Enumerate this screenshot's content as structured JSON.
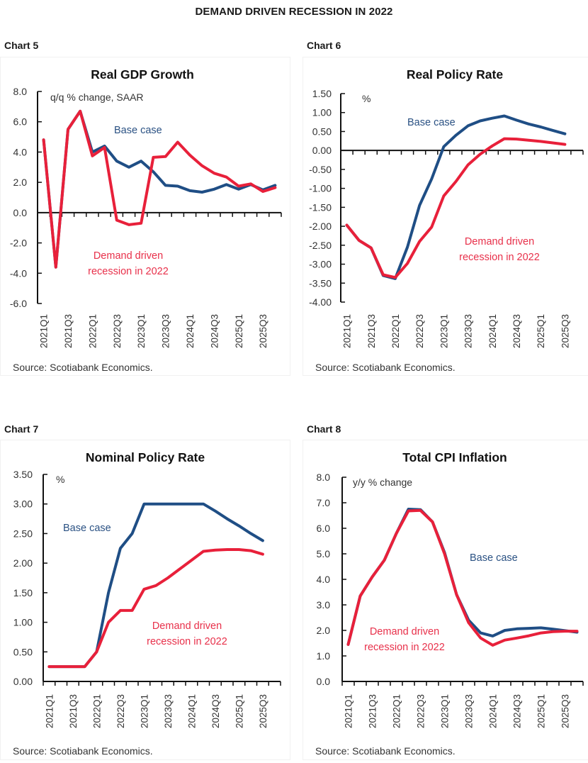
{
  "page_title": "DEMAND DRIVEN RECESSION IN 2022",
  "colors": {
    "base_case": "#1f4e85",
    "recession": "#e8203a",
    "axis": "#111111"
  },
  "quarters": [
    "2021Q1",
    "2021Q2",
    "2021Q3",
    "2021Q4",
    "2022Q1",
    "2022Q2",
    "2022Q3",
    "2022Q4",
    "2023Q1",
    "2023Q2",
    "2023Q3",
    "2023Q4",
    "2024Q1",
    "2024Q2",
    "2024Q3",
    "2024Q4",
    "2025Q1",
    "2025Q2",
    "2025Q3",
    "2025Q4"
  ],
  "x_tick_labels": [
    "2021Q1",
    "2021Q3",
    "2022Q1",
    "2022Q3",
    "2023Q1",
    "2023Q3",
    "2024Q1",
    "2024Q3",
    "2025Q1",
    "2025Q3"
  ],
  "chart_data": [
    {
      "label": "Chart 5",
      "type": "line",
      "title": "Real GDP Growth",
      "unit_label": "q/q % change, SAAR",
      "source": "Source: Scotiabank Economics.",
      "xlabel": "",
      "ylabel": "",
      "ylim": [
        -6.0,
        8.0
      ],
      "yticks": [
        "8.0",
        "6.0",
        "4.0",
        "2.0",
        "0.0",
        "-2.0",
        "-4.0",
        "-6.0"
      ],
      "ytick_values": [
        8,
        6,
        4,
        2,
        0,
        -2,
        -4,
        -6
      ],
      "grid": false,
      "annotations": {
        "base_case": "Base case",
        "recession_line1": "Demand driven",
        "recession_line2": "recession in 2022"
      },
      "series": [
        {
          "name": "Base case",
          "values": [
            4.8,
            -3.6,
            5.5,
            6.7,
            4.0,
            4.4,
            3.4,
            3.0,
            3.4,
            2.7,
            1.8,
            1.75,
            1.45,
            1.35,
            1.55,
            1.85,
            1.55,
            1.85,
            1.5,
            1.8
          ]
        },
        {
          "name": "Demand driven recession in 2022",
          "values": [
            4.8,
            -3.6,
            5.5,
            6.7,
            3.75,
            4.3,
            -0.5,
            -0.8,
            -0.7,
            3.65,
            3.7,
            4.65,
            3.8,
            3.1,
            2.6,
            2.35,
            1.75,
            1.9,
            1.4,
            1.65
          ]
        }
      ]
    },
    {
      "label": "Chart 6",
      "type": "line",
      "title": "Real Policy Rate",
      "unit_label": "%",
      "source": "Source: Scotiabank Economics.",
      "xlabel": "",
      "ylabel": "",
      "ylim": [
        -4.0,
        1.5
      ],
      "yticks": [
        "1.50",
        "1.00",
        "0.50",
        "0.00",
        "-0.50",
        "-1.00",
        "-1.50",
        "-2.00",
        "-2.50",
        "-3.00",
        "-3.50",
        "-4.00"
      ],
      "ytick_values": [
        1.5,
        1.0,
        0.5,
        0.0,
        -0.5,
        -1.0,
        -1.5,
        -2.0,
        -2.5,
        -3.0,
        -3.5,
        -4.0
      ],
      "grid": false,
      "annotations": {
        "base_case": "Base case",
        "recession_line1": "Demand driven",
        "recession_line2": "recession in 2022"
      },
      "series": [
        {
          "name": "Base case",
          "values": [
            -1.97,
            -2.37,
            -2.57,
            -3.3,
            -3.38,
            -2.55,
            -1.45,
            -0.75,
            0.1,
            0.4,
            0.65,
            0.78,
            0.85,
            0.91,
            0.8,
            0.7,
            0.62,
            0.53,
            0.44,
            null
          ]
        },
        {
          "name": "Demand driven recession in 2022",
          "values": [
            -1.97,
            -2.37,
            -2.57,
            -3.28,
            -3.35,
            -2.98,
            -2.4,
            -2.02,
            -1.2,
            -0.82,
            -0.38,
            -0.1,
            0.12,
            0.31,
            0.3,
            0.27,
            0.24,
            0.2,
            0.16,
            null
          ]
        }
      ]
    },
    {
      "label": "Chart 7",
      "type": "line",
      "title": "Nominal Policy Rate",
      "unit_label": "%",
      "source": "Source: Scotiabank Economics.",
      "xlabel": "",
      "ylabel": "",
      "ylim": [
        0.0,
        3.5
      ],
      "yticks": [
        "3.50",
        "3.00",
        "2.50",
        "2.00",
        "1.50",
        "1.00",
        "0.50",
        "0.00"
      ],
      "ytick_values": [
        3.5,
        3.0,
        2.5,
        2.0,
        1.5,
        1.0,
        0.5,
        0.0
      ],
      "grid": false,
      "annotations": {
        "base_case": "Base case",
        "recession_line1": "Demand driven",
        "recession_line2": "recession in 2022"
      },
      "series": [
        {
          "name": "Base case",
          "values": [
            0.25,
            0.25,
            0.25,
            0.25,
            0.5,
            1.5,
            2.25,
            2.5,
            3.0,
            3.0,
            3.0,
            3.0,
            3.0,
            3.0,
            2.88,
            2.75,
            2.63,
            2.5,
            2.38,
            null
          ]
        },
        {
          "name": "Demand driven recession in 2022",
          "values": [
            0.25,
            0.25,
            0.25,
            0.25,
            0.5,
            1.0,
            1.2,
            1.2,
            1.56,
            1.62,
            1.75,
            1.9,
            2.05,
            2.2,
            2.22,
            2.23,
            2.23,
            2.21,
            2.15,
            null
          ]
        }
      ]
    },
    {
      "label": "Chart 8",
      "type": "line",
      "title": "Total CPI Inflation",
      "unit_label": "y/y % change",
      "source": "Source: Scotiabank Economics.",
      "xlabel": "",
      "ylabel": "",
      "ylim": [
        0.0,
        8.0
      ],
      "yticks": [
        "8.0",
        "7.0",
        "6.0",
        "5.0",
        "4.0",
        "3.0",
        "2.0",
        "1.0",
        "0.0"
      ],
      "ytick_values": [
        8,
        7,
        6,
        5,
        4,
        3,
        2,
        1,
        0
      ],
      "grid": false,
      "annotations": {
        "base_case": "Base case",
        "recession_line1": "Demand driven",
        "recession_line2": "recession in 2022"
      },
      "series": [
        {
          "name": "Base case",
          "values": [
            1.45,
            3.35,
            4.1,
            4.75,
            5.8,
            6.75,
            6.73,
            6.25,
            5.05,
            3.4,
            2.4,
            1.9,
            1.78,
            2.0,
            2.06,
            2.08,
            2.1,
            2.05,
            1.99,
            1.93
          ]
        },
        {
          "name": "Demand driven recession in 2022",
          "values": [
            1.45,
            3.35,
            4.1,
            4.75,
            5.8,
            6.68,
            6.7,
            6.25,
            5.0,
            3.4,
            2.3,
            1.7,
            1.42,
            1.62,
            1.7,
            1.79,
            1.9,
            1.95,
            1.97,
            1.97
          ]
        }
      ]
    }
  ]
}
